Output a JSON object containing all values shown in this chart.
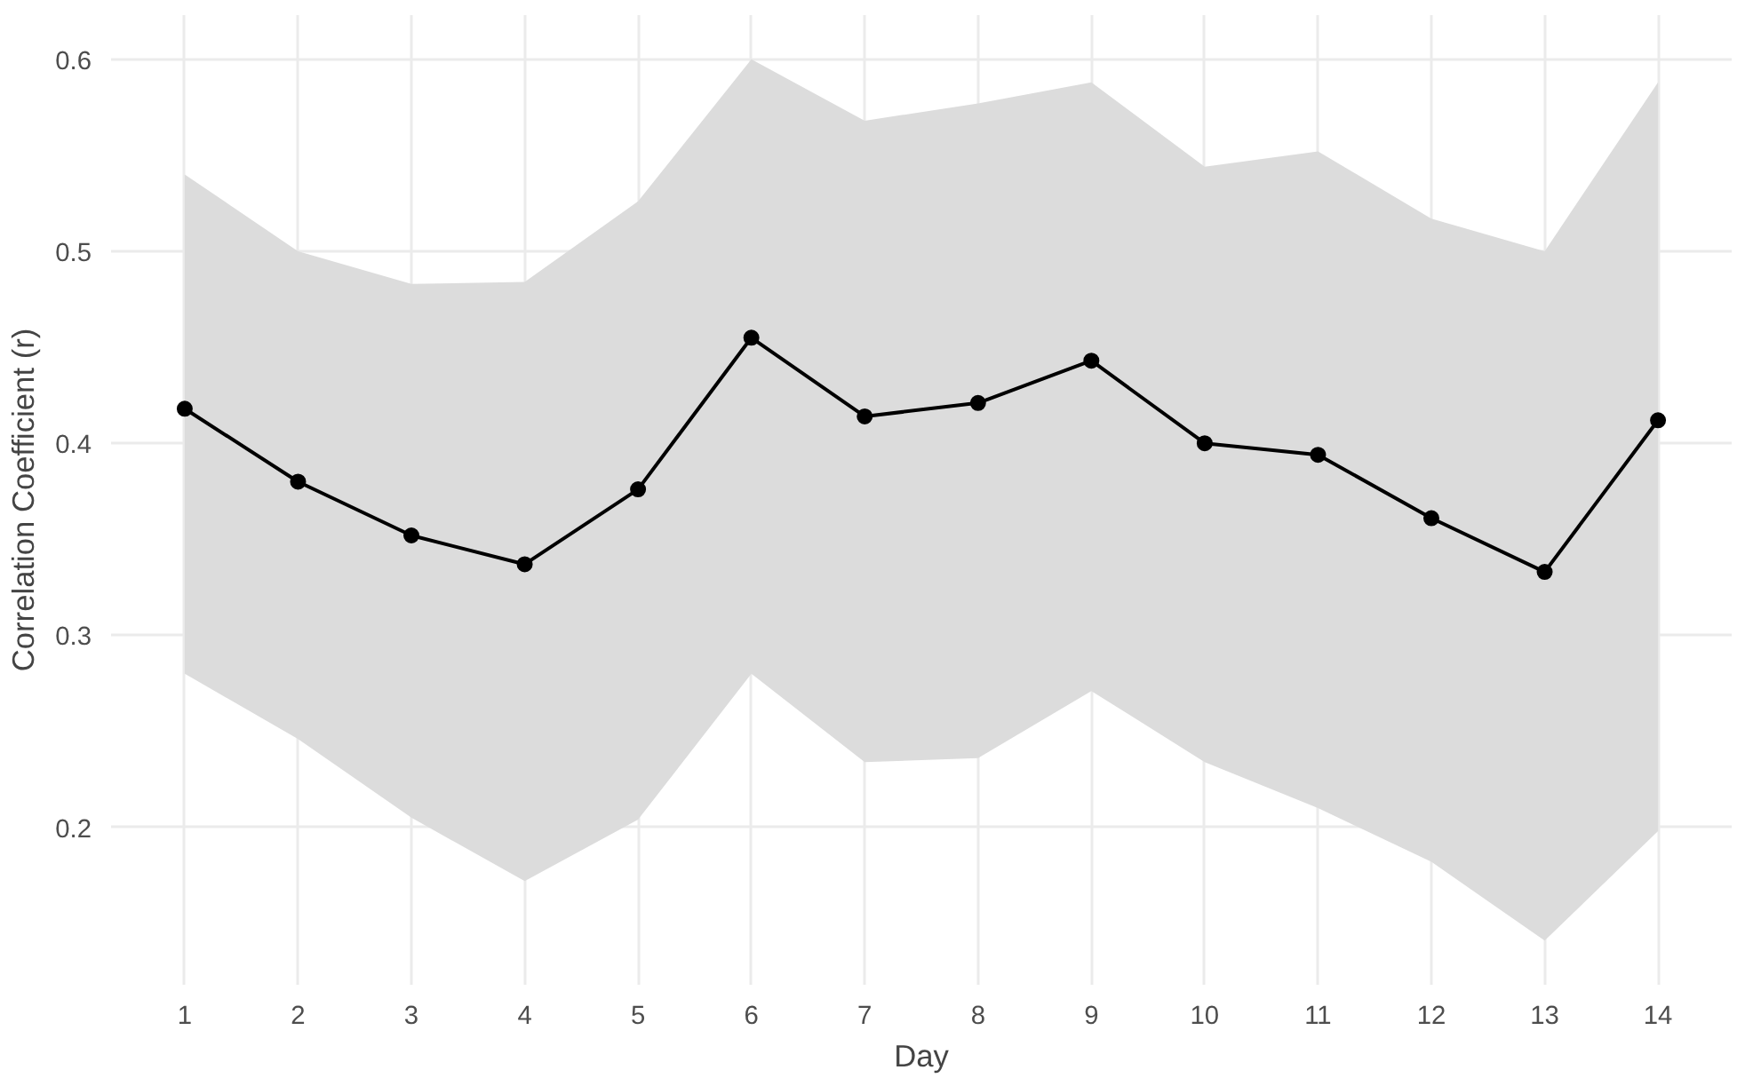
{
  "chart_data": {
    "type": "line",
    "xlabel": "Day",
    "ylabel": "Correlation Coefficient (r)",
    "x": [
      1,
      2,
      3,
      4,
      5,
      6,
      7,
      8,
      9,
      10,
      11,
      12,
      13,
      14
    ],
    "series": [
      {
        "color": "#000000",
        "values": [
          0.418,
          0.38,
          0.352,
          0.337,
          0.376,
          0.455,
          0.414,
          0.421,
          0.443,
          0.4,
          0.394,
          0.361,
          0.333,
          0.412
        ],
        "lower": [
          0.28,
          0.246,
          0.205,
          0.172,
          0.204,
          0.28,
          0.234,
          0.236,
          0.271,
          0.234,
          0.21,
          0.182,
          0.141,
          0.198
        ],
        "upper": [
          0.54,
          0.5,
          0.483,
          0.484,
          0.526,
          0.6,
          0.568,
          0.577,
          0.588,
          0.544,
          0.552,
          0.517,
          0.5,
          0.588
        ]
      }
    ],
    "xlim": [
      0.35,
      14.65
    ],
    "ylim": [
      0.118,
      0.623
    ],
    "xticks": [
      1,
      2,
      3,
      4,
      5,
      6,
      7,
      8,
      9,
      10,
      11,
      12,
      13,
      14
    ],
    "yticks": [
      {
        "value": 0.2,
        "label": "0.2"
      },
      {
        "value": 0.3,
        "label": "0.3"
      },
      {
        "value": 0.4,
        "label": "0.4"
      },
      {
        "value": 0.5,
        "label": "0.5"
      },
      {
        "value": 0.6,
        "label": "0.6"
      }
    ],
    "grid": true,
    "marker": "circle",
    "line_style": "solid"
  }
}
